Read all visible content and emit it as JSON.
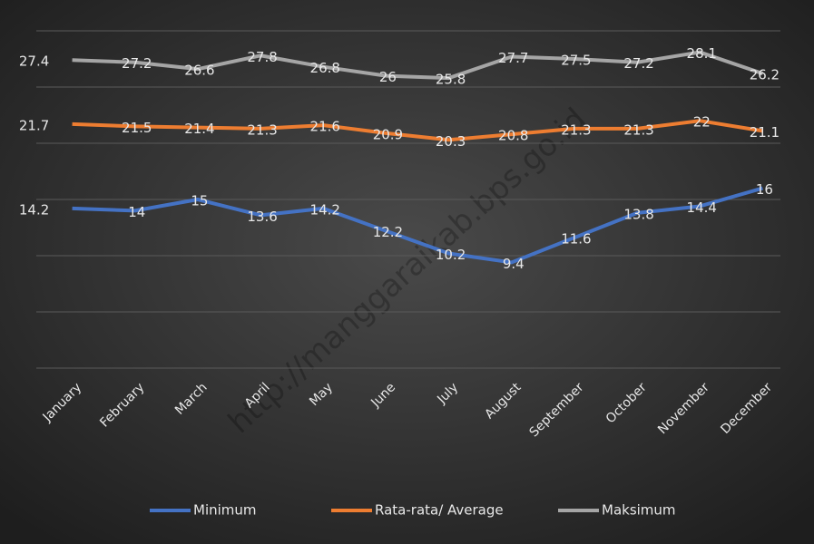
{
  "chart_data": {
    "type": "line",
    "categories": [
      "January",
      "February",
      "March",
      "April",
      "May",
      "June",
      "July",
      "August",
      "September",
      "October",
      "November",
      "December"
    ],
    "series": [
      {
        "name": "Minimum",
        "color": "#4472c4",
        "values": [
          14.2,
          14,
          15,
          13.6,
          14.2,
          12.2,
          10.2,
          9.4,
          11.6,
          13.8,
          14.4,
          16
        ]
      },
      {
        "name": "Rata-rata/ Average",
        "color": "#ed7d31",
        "values": [
          21.7,
          21.5,
          21.4,
          21.3,
          21.6,
          20.9,
          20.3,
          20.8,
          21.3,
          21.3,
          22,
          21.1
        ]
      },
      {
        "name": "Maksimum",
        "color": "#a5a5a5",
        "values": [
          27.4,
          27.2,
          26.6,
          27.8,
          26.8,
          26,
          25.8,
          27.7,
          27.5,
          27.2,
          28.1,
          26.2
        ]
      }
    ],
    "ylim": [
      0,
      30
    ],
    "yticks": [
      0,
      5,
      10,
      15,
      20,
      25,
      30
    ],
    "grid": true,
    "legend": "bottom",
    "watermark": "http://manggaraikab.bps.go.id"
  }
}
